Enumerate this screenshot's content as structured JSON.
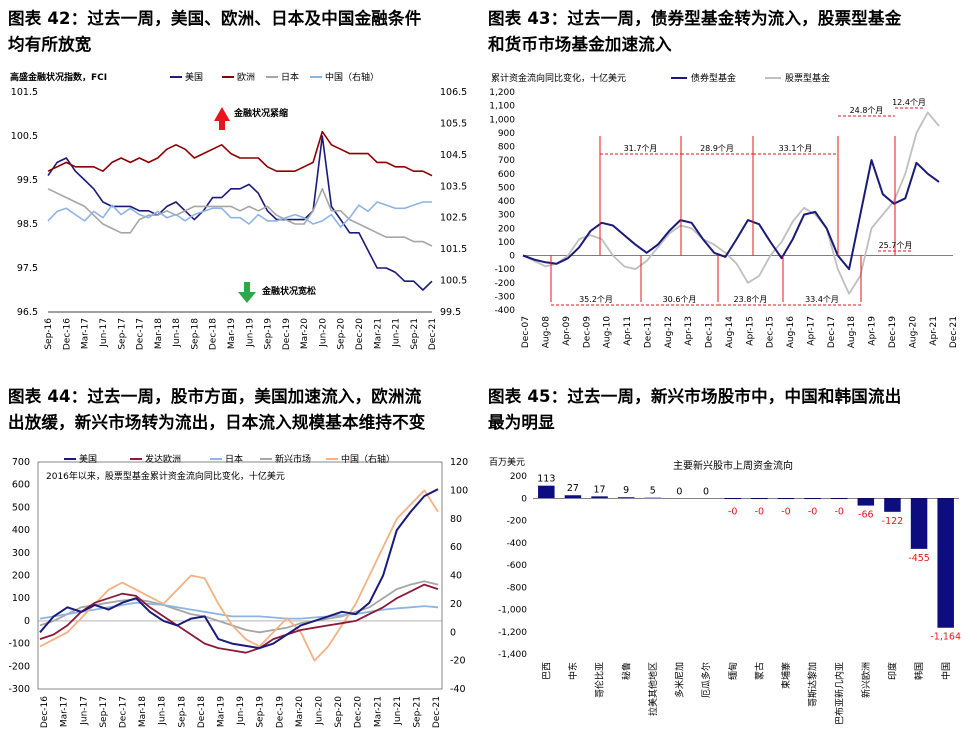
{
  "figures": {
    "fig42": {
      "title_line1": "图表 42：过去一周，美国、欧洲、日本及中国金融条件",
      "title_line2": "均有所放宽"
    },
    "fig43": {
      "title_line1": "图表 43：过去一周，债券型基金转为流入，股票型基金",
      "title_line2": "和货币市场基金加速流入"
    },
    "fig44": {
      "title_line1": "图表 44：过去一周，股市方面，美国加速流入，欧洲流",
      "title_line2": "出放缓，新兴市场转为流出，日本流入规模基本维持不变"
    },
    "fig45": {
      "title_line1": "图表 45：过去一周，新兴市场股市中，中国和韩国流出",
      "title_line2": "最为明显"
    }
  },
  "chart_data": [
    {
      "id": "fig42",
      "type": "line",
      "ylabel_note": "高盛金融状况指数，FCI",
      "legend": [
        "美国",
        "欧洲",
        "日本",
        "中国（右轴）"
      ],
      "colors": {
        "us": "#1a1a7a",
        "eu": "#8b0000",
        "jp": "#a6a6a6",
        "cn": "#8eb4e3"
      },
      "annotations": {
        "tight": "金融状况紧缩",
        "loose": "金融状况宽松"
      },
      "arrow_colors": {
        "up": "#e8161b",
        "down": "#2ca84a"
      },
      "left_ticks": [
        "101.5",
        "100.5",
        "99.5",
        "98.5",
        "97.5",
        "96.5"
      ],
      "left_range": [
        96.5,
        101.5
      ],
      "right_ticks": [
        "106.5",
        "105.5",
        "104.5",
        "103.5",
        "102.5",
        "101.5",
        "100.5",
        "99.5"
      ],
      "right_range": [
        99.5,
        106.5
      ],
      "x_ticks": [
        "Sep-16",
        "Dec-16",
        "Mar-17",
        "Jun-17",
        "Sep-17",
        "Dec-17",
        "Mar-18",
        "Jun-18",
        "Sep-18",
        "Dec-18",
        "Mar-19",
        "Jun-19",
        "Sep-19",
        "Dec-19",
        "Mar-20",
        "Jun-20",
        "Sep-20",
        "Dec-20",
        "Mar-21",
        "Jun-21",
        "Sep-21",
        "Dec-21"
      ],
      "series": [
        {
          "name": "美国",
          "key": "us",
          "axis": "left",
          "values": [
            99.6,
            99.9,
            100.0,
            99.7,
            99.5,
            99.3,
            99.0,
            98.9,
            98.9,
            98.9,
            98.8,
            98.8,
            98.7,
            98.9,
            99.0,
            98.8,
            98.6,
            98.8,
            99.1,
            99.1,
            99.3,
            99.3,
            99.4,
            99.2,
            98.8,
            98.6,
            98.6,
            98.6,
            98.6,
            98.8,
            100.5,
            98.9,
            98.6,
            98.3,
            98.3,
            97.9,
            97.5,
            97.5,
            97.4,
            97.2,
            97.2,
            97.0,
            97.2
          ]
        },
        {
          "name": "欧洲",
          "key": "eu",
          "axis": "left",
          "values": [
            99.7,
            99.8,
            99.9,
            99.8,
            99.8,
            99.8,
            99.7,
            99.9,
            100.0,
            99.9,
            100.0,
            99.9,
            100.0,
            100.2,
            100.3,
            100.2,
            100.0,
            100.1,
            100.2,
            100.3,
            100.1,
            100.0,
            100.0,
            100.0,
            99.8,
            99.7,
            99.7,
            99.7,
            99.8,
            99.9,
            100.6,
            100.3,
            100.2,
            100.1,
            100.1,
            100.1,
            99.9,
            99.9,
            99.8,
            99.8,
            99.7,
            99.7,
            99.6
          ]
        },
        {
          "name": "日本",
          "key": "jp",
          "axis": "left",
          "values": [
            99.3,
            99.2,
            99.1,
            99.0,
            98.9,
            98.7,
            98.5,
            98.4,
            98.3,
            98.3,
            98.6,
            98.7,
            98.7,
            98.8,
            98.7,
            98.8,
            98.9,
            98.9,
            98.9,
            98.9,
            98.9,
            98.8,
            98.9,
            98.8,
            98.9,
            98.7,
            98.6,
            98.5,
            98.5,
            98.8,
            99.3,
            98.8,
            98.8,
            98.6,
            98.5,
            98.4,
            98.3,
            98.2,
            98.2,
            98.2,
            98.1,
            98.1,
            98.0
          ]
        },
        {
          "name": "中国（右轴）",
          "key": "cn",
          "axis": "right",
          "values": [
            102.4,
            102.7,
            102.8,
            102.6,
            102.4,
            102.7,
            102.5,
            102.9,
            102.6,
            102.8,
            102.6,
            102.5,
            102.7,
            102.5,
            102.6,
            102.4,
            102.6,
            102.7,
            102.8,
            102.8,
            102.5,
            102.5,
            102.3,
            102.6,
            102.4,
            102.4,
            102.5,
            102.6,
            102.5,
            102.3,
            102.4,
            102.6,
            102.2,
            102.5,
            102.9,
            102.7,
            103.0,
            102.9,
            102.8,
            102.8,
            102.9,
            103.0,
            103.0
          ]
        }
      ]
    },
    {
      "id": "fig43",
      "type": "line",
      "ylabel_note": "累计资金流向同比变化，十亿美元",
      "legend": [
        "债券型基金",
        "股票型基金"
      ],
      "colors": {
        "bond": "#1a1a7a",
        "equity": "#bfbfbf",
        "marker": "#e8161b"
      },
      "y_ticks": [
        "1,200",
        "1,100",
        "1,000",
        "900",
        "800",
        "700",
        "600",
        "500",
        "400",
        "300",
        "200",
        "100",
        "0",
        "-100",
        "-200",
        "-300",
        "-400"
      ],
      "y_range": [
        -400,
        1200
      ],
      "x_ticks": [
        "Dec-07",
        "Aug-08",
        "Apr-09",
        "Dec-09",
        "Aug-10",
        "Apr-11",
        "Dec-11",
        "Aug-12",
        "Apr-13",
        "Dec-13",
        "Aug-14",
        "Apr-15",
        "Dec-15",
        "Aug-16",
        "Apr-17",
        "Dec-17",
        "Aug-18",
        "Apr-19",
        "Dec-19",
        "Aug-20",
        "Apr-21",
        "Dec-21"
      ],
      "cycle_labels_top": [
        "31.7个月",
        "28.9个月",
        "33.1个月",
        "24.8个月",
        "12.4个月"
      ],
      "cycle_labels_bottom": [
        "35.2个月",
        "30.6个月",
        "23.8个月",
        "33.4个月",
        "25.7个月"
      ],
      "series": [
        {
          "name": "债券型基金",
          "key": "bond",
          "values": [
            0,
            -30,
            -50,
            -60,
            -20,
            60,
            180,
            240,
            220,
            150,
            80,
            20,
            80,
            180,
            260,
            240,
            120,
            20,
            -10,
            120,
            260,
            230,
            100,
            -20,
            120,
            300,
            320,
            200,
            0,
            -100,
            300,
            700,
            450,
            380,
            420,
            680,
            600,
            540
          ]
        },
        {
          "name": "股票型基金",
          "key": "equity",
          "values": [
            0,
            -40,
            -80,
            -60,
            0,
            120,
            150,
            120,
            0,
            -80,
            -100,
            -40,
            60,
            160,
            220,
            200,
            120,
            80,
            20,
            -60,
            -200,
            -150,
            0,
            100,
            250,
            350,
            300,
            200,
            -100,
            -280,
            -150,
            200,
            300,
            400,
            600,
            900,
            1050,
            950
          ]
        }
      ]
    },
    {
      "id": "fig44",
      "type": "line",
      "ylabel_note": "2016年以来，股票型基金累计资金流向同比变化，十亿美元",
      "legend": [
        "美国",
        "发达欧洲",
        "日本",
        "新兴市场",
        "中国（右轴）"
      ],
      "colors": {
        "us": "#1a1a7a",
        "eu": "#8b1a3a",
        "jp": "#8eb4e3",
        "em": "#a6a6a6",
        "cn": "#f4b183"
      },
      "left_ticks": [
        "700",
        "600",
        "500",
        "400",
        "300",
        "200",
        "100",
        "0",
        "-100",
        "-200",
        "-300"
      ],
      "left_range": [
        -300,
        700
      ],
      "right_ticks": [
        "120",
        "100",
        "80",
        "60",
        "40",
        "20",
        "0",
        "-20",
        "-40"
      ],
      "right_range": [
        -40,
        120
      ],
      "x_ticks": [
        "Dec-16",
        "Mar-17",
        "Jun-17",
        "Sep-17",
        "Dec-17",
        "Mar-18",
        "Jun-18",
        "Sep-18",
        "Dec-18",
        "Mar-19",
        "Jun-19",
        "Sep-19",
        "Dec-19",
        "Mar-20",
        "Jun-20",
        "Sep-20",
        "Dec-20",
        "Mar-21",
        "Jun-21",
        "Sep-21",
        "Dec-21"
      ],
      "series": [
        {
          "name": "美国",
          "key": "us",
          "axis": "left",
          "values": [
            -50,
            20,
            60,
            40,
            70,
            50,
            80,
            100,
            40,
            0,
            -20,
            10,
            20,
            -80,
            -100,
            -110,
            -120,
            -100,
            -60,
            -20,
            0,
            20,
            40,
            30,
            80,
            200,
            400,
            480,
            550,
            580
          ]
        },
        {
          "name": "发达欧洲",
          "key": "eu",
          "axis": "left",
          "values": [
            -80,
            -60,
            -20,
            40,
            80,
            100,
            120,
            110,
            60,
            20,
            -20,
            -60,
            -100,
            -120,
            -130,
            -140,
            -120,
            -80,
            -60,
            -40,
            -30,
            -20,
            -10,
            0,
            30,
            60,
            100,
            130,
            160,
            140
          ]
        },
        {
          "name": "日本",
          "key": "jp",
          "axis": "left",
          "values": [
            10,
            20,
            30,
            40,
            50,
            60,
            70,
            80,
            75,
            70,
            60,
            50,
            40,
            30,
            20,
            20,
            20,
            15,
            10,
            10,
            15,
            20,
            25,
            30,
            40,
            50,
            55,
            60,
            65,
            60
          ]
        },
        {
          "name": "新兴市场",
          "key": "em",
          "axis": "left",
          "values": [
            -20,
            0,
            30,
            60,
            70,
            80,
            90,
            95,
            85,
            70,
            50,
            30,
            20,
            0,
            -20,
            -40,
            -50,
            -40,
            -30,
            -10,
            0,
            10,
            20,
            40,
            60,
            100,
            140,
            160,
            175,
            160
          ]
        },
        {
          "name": "中国（右轴）",
          "key": "cn",
          "axis": "right",
          "values": [
            -10,
            -5,
            0,
            10,
            20,
            30,
            35,
            30,
            25,
            20,
            30,
            40,
            38,
            20,
            5,
            -5,
            -10,
            0,
            10,
            0,
            -20,
            -10,
            5,
            20,
            40,
            60,
            80,
            90,
            100,
            85
          ]
        }
      ]
    },
    {
      "id": "fig45",
      "type": "bar",
      "title": "主要新兴股市上周资金流向",
      "ylabel": "百万美元",
      "categories": [
        "巴西",
        "中东",
        "哥伦比亚",
        "秘鲁",
        "拉美其他地区",
        "多米尼加",
        "厄瓜多尔",
        "缅甸",
        "蒙古",
        "柬埔寨",
        "哥斯达黎加",
        "巴布亚新几内亚",
        "新兴欧洲",
        "印度",
        "韩国",
        "中国"
      ],
      "values": [
        113,
        27,
        17,
        9,
        5,
        0,
        0,
        -0.2,
        -0.3,
        -0.2,
        -0.1,
        -0.1,
        -66,
        -122,
        -455,
        -1164
      ],
      "value_labels": [
        "113",
        "27",
        "17",
        "9",
        "5",
        "0",
        "0",
        "-0",
        "-0",
        "-0",
        "-0",
        "-0",
        "-66",
        "-122",
        "-455",
        "-1,164"
      ],
      "y_ticks": [
        "200",
        "0",
        "-200",
        "-400",
        "-600",
        "-800",
        "-1,000",
        "-1,200",
        "-1,400"
      ],
      "y_range": [
        -1400,
        200
      ],
      "colors": {
        "bar": "#0d0d80",
        "neg_zero_label": "#e8161b"
      }
    }
  ]
}
